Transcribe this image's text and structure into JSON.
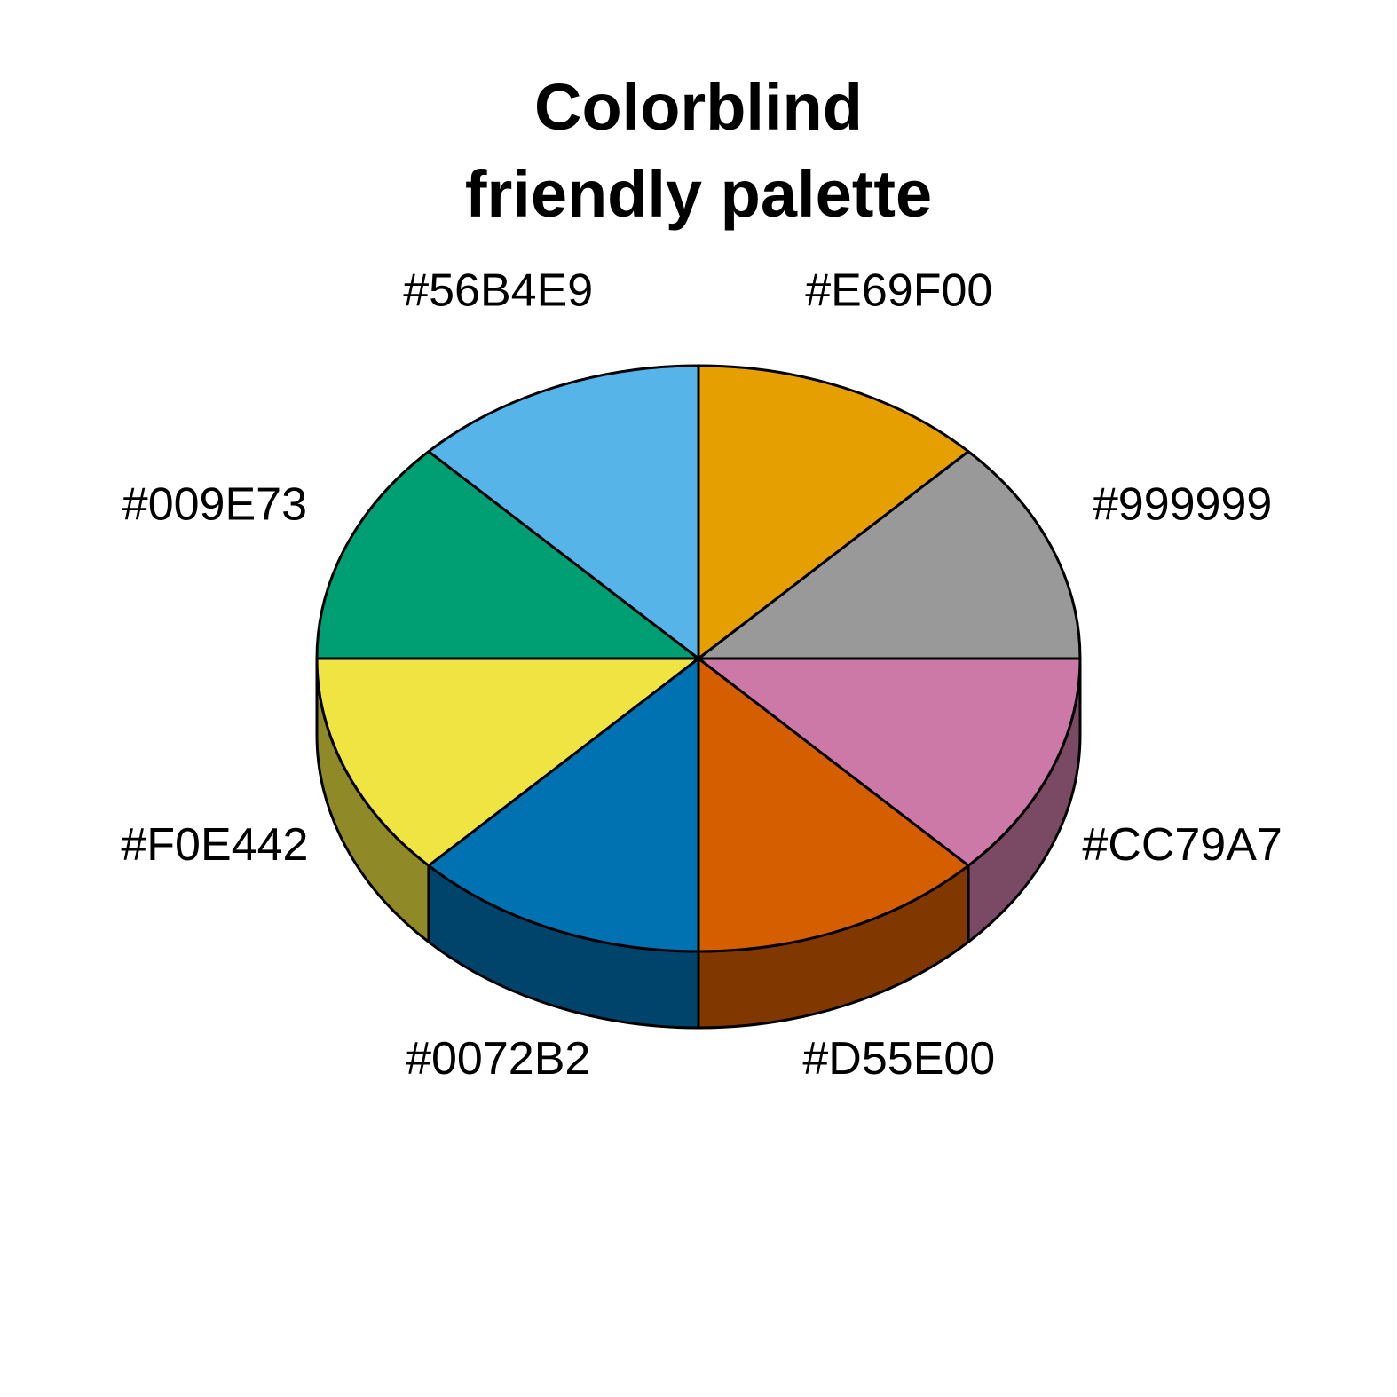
{
  "chart_data": {
    "type": "pie",
    "style": "3d",
    "title_lines": [
      "Colorblind",
      "friendly palette"
    ],
    "slices": [
      {
        "label": "#E69F00",
        "value": 1,
        "color": "#E69F00"
      },
      {
        "label": "#999999",
        "value": 1,
        "color": "#999999"
      },
      {
        "label": "#CC79A7",
        "value": 1,
        "color": "#CC79A7"
      },
      {
        "label": "#D55E00",
        "value": 1,
        "color": "#D55E00"
      },
      {
        "label": "#0072B2",
        "value": 1,
        "color": "#0072B2"
      },
      {
        "label": "#F0E442",
        "value": 1,
        "color": "#F0E442"
      },
      {
        "label": "#009E73",
        "value": 1,
        "color": "#009E73"
      },
      {
        "label": "#56B4E9",
        "value": 1,
        "color": "#56B4E9"
      }
    ],
    "start_angle_deg": 90,
    "direction": "clockwise",
    "side_shade": 0.6
  }
}
